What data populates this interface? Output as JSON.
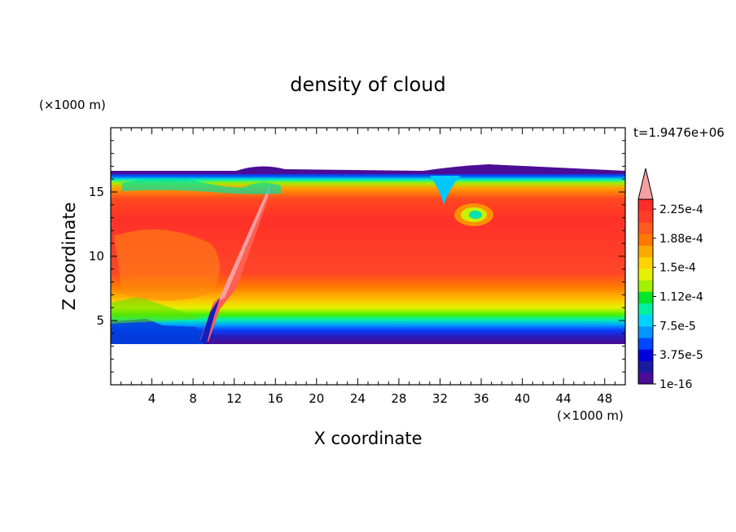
{
  "chart_data": {
    "type": "heatmap",
    "title": "density of cloud",
    "xlabel": "X coordinate",
    "ylabel": "Z coordinate",
    "x_unit": "(×1000 m)",
    "y_unit": "(×1000 m)",
    "time_label": "t=1.9476e+06",
    "xlim": [
      0,
      50
    ],
    "ylim": [
      0,
      20
    ],
    "x_ticks": [
      "4",
      "8",
      "12",
      "16",
      "20",
      "24",
      "28",
      "32",
      "36",
      "40",
      "44",
      "48"
    ],
    "y_ticks": [
      "5",
      "10",
      "15"
    ],
    "colorbar": {
      "labels": [
        "1e-16",
        "3.75e-5",
        "7.5e-5",
        "1.12e-4",
        "1.5e-4",
        "1.88e-4",
        "2.25e-4"
      ],
      "colors": [
        "#4b0c96",
        "#1a1aa0",
        "#0000dc",
        "#0046ff",
        "#0096ff",
        "#00d2ff",
        "#00f0a0",
        "#00e628",
        "#a0f000",
        "#e6f000",
        "#ffd200",
        "#ffaa00",
        "#ff7800",
        "#ff5a1e",
        "#ff3c28",
        "#ff2d28"
      ],
      "extend_color": "#f5a0a0"
    },
    "field_description": {
      "cloud_base_km": 3.5,
      "cloud_top_km": 16.5,
      "peak_band_km": [
        8,
        15
      ],
      "front_line_km": [
        [
          9.5,
          4
        ],
        [
          15.5,
          15.5
        ]
      ],
      "eddy_center_km": [
        35,
        13
      ]
    }
  }
}
